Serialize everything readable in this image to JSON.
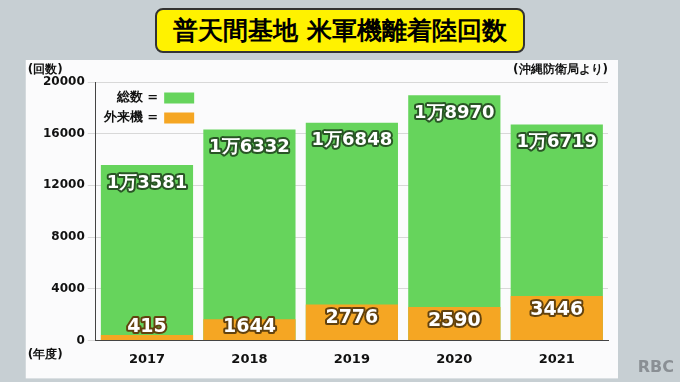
{
  "chart_data": {
    "type": "bar",
    "title": "普天間基地 米軍機離着陸回数",
    "source": "(沖縄防衛局より)",
    "y_label": "(回数)",
    "x_label": "(年度)",
    "watermark": "RBC",
    "categories": [
      "2017",
      "2018",
      "2019",
      "2020",
      "2021"
    ],
    "series": [
      {
        "name": "総数 =",
        "color": "#66d45c",
        "values": [
          13581,
          16332,
          16848,
          18970,
          16719
        ],
        "value_labels": [
          "1万3581",
          "1万6332",
          "1万6848",
          "1万8970",
          "1万6719"
        ]
      },
      {
        "name": "外来機 =",
        "color": "#f5a623",
        "values": [
          415,
          1644,
          2776,
          2590,
          3446
        ]
      }
    ],
    "stacked": false,
    "data_labels": true,
    "legend": "upper left",
    "grid": true,
    "ylim": [
      0,
      20000
    ],
    "yticks": [
      0,
      4000,
      8000,
      12000,
      16000,
      20000
    ]
  }
}
